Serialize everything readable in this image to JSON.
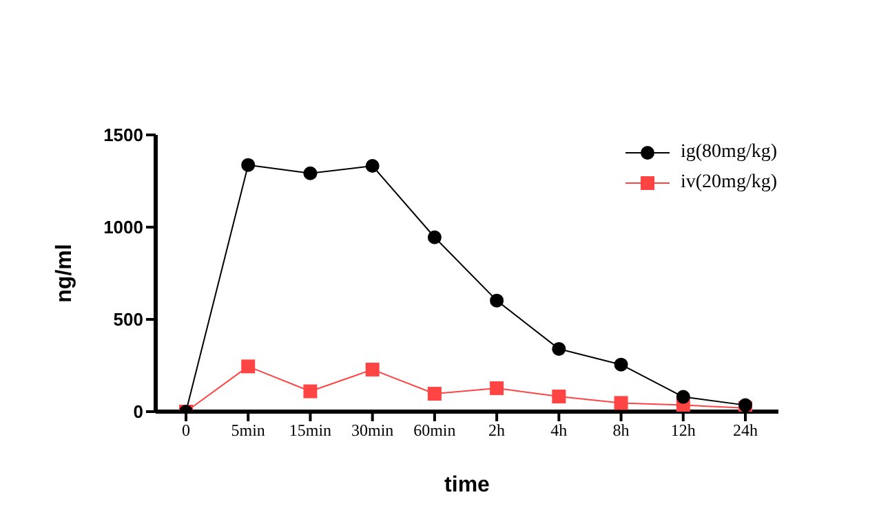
{
  "chart_data": {
    "type": "line",
    "xlabel": "time",
    "ylabel": "ng/ml",
    "categories": [
      "0",
      "5min",
      "15min",
      "30min",
      "60min",
      "2h",
      "4h",
      "8h",
      "12h",
      "24h"
    ],
    "series": [
      {
        "name": "ig(80mg/kg)",
        "color": "#000000",
        "marker": "circle",
        "values": [
          0,
          1337,
          1292,
          1332,
          945,
          602,
          340,
          255,
          80,
          35
        ]
      },
      {
        "name": "iv(20mg/kg)",
        "color": "#ff4444",
        "marker": "square",
        "values": [
          0,
          245,
          110,
          228,
          97,
          127,
          82,
          47,
          35,
          20
        ]
      }
    ],
    "ylim": [
      0,
      1500
    ],
    "yticks": [
      0,
      500,
      1000,
      1500
    ],
    "legend": "top right",
    "line_style": "solid"
  }
}
